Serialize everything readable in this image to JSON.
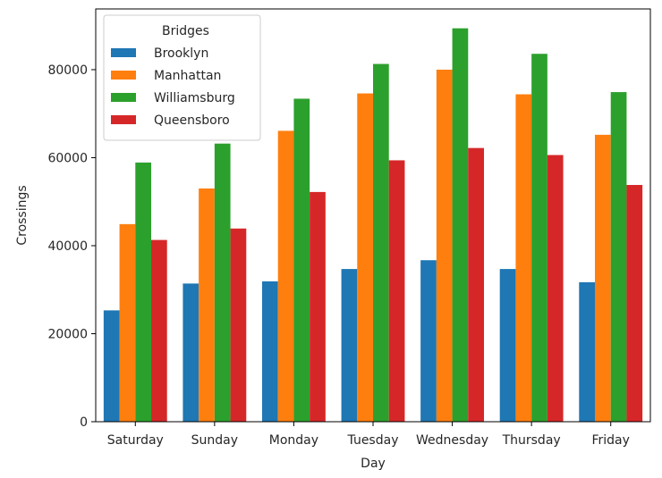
{
  "chart_data": {
    "type": "bar",
    "title": "",
    "xlabel": "Day",
    "ylabel": "Crossings",
    "categories": [
      "Saturday",
      "Sunday",
      "Monday",
      "Tuesday",
      "Wednesday",
      "Thursday",
      "Friday"
    ],
    "series": [
      {
        "name": "Brooklyn",
        "color": "#1f77b4",
        "values": [
          25300,
          31400,
          31900,
          34700,
          36700,
          34700,
          31700
        ]
      },
      {
        "name": "Manhattan",
        "color": "#ff7f0e",
        "values": [
          44900,
          53000,
          66100,
          74600,
          80000,
          74400,
          65200
        ]
      },
      {
        "name": "Williamsburg",
        "color": "#2ca02c",
        "values": [
          58900,
          63200,
          73400,
          81300,
          89400,
          83600,
          74900
        ]
      },
      {
        "name": "Queensboro",
        "color": "#d62728",
        "values": [
          41300,
          43900,
          52200,
          59400,
          62200,
          60600,
          53800
        ]
      }
    ],
    "yticks": [
      0,
      20000,
      40000,
      60000,
      80000
    ],
    "ylim": [
      0,
      93800
    ],
    "grid": false,
    "legend": {
      "title": "Bridges",
      "placement": "top-left"
    }
  }
}
